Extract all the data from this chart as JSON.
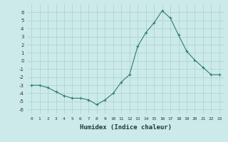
{
  "x": [
    0,
    1,
    2,
    3,
    4,
    5,
    6,
    7,
    8,
    9,
    10,
    11,
    12,
    13,
    14,
    15,
    16,
    17,
    18,
    19,
    20,
    21,
    22,
    23
  ],
  "y": [
    -3.0,
    -3.0,
    -3.3,
    -3.8,
    -4.3,
    -4.6,
    -4.6,
    -4.8,
    -5.4,
    -4.8,
    -4.0,
    -2.6,
    -1.7,
    1.8,
    3.5,
    4.7,
    6.2,
    5.3,
    3.2,
    1.2,
    0.1,
    -0.8,
    -1.7,
    -1.7
  ],
  "xlabel": "Humidex (Indice chaleur)",
  "line_color": "#2e7d6e",
  "marker": "+",
  "bg_color": "#cceaea",
  "grid_color": "#aacfcf",
  "ylim": [
    -6.5,
    7.0
  ],
  "xlim": [
    -0.5,
    23.5
  ],
  "yticks": [
    -6,
    -5,
    -4,
    -3,
    -2,
    -1,
    0,
    1,
    2,
    3,
    4,
    5,
    6
  ],
  "xticks": [
    0,
    1,
    2,
    3,
    4,
    5,
    6,
    7,
    8,
    9,
    10,
    11,
    12,
    13,
    14,
    15,
    16,
    17,
    18,
    19,
    20,
    21,
    22,
    23
  ]
}
